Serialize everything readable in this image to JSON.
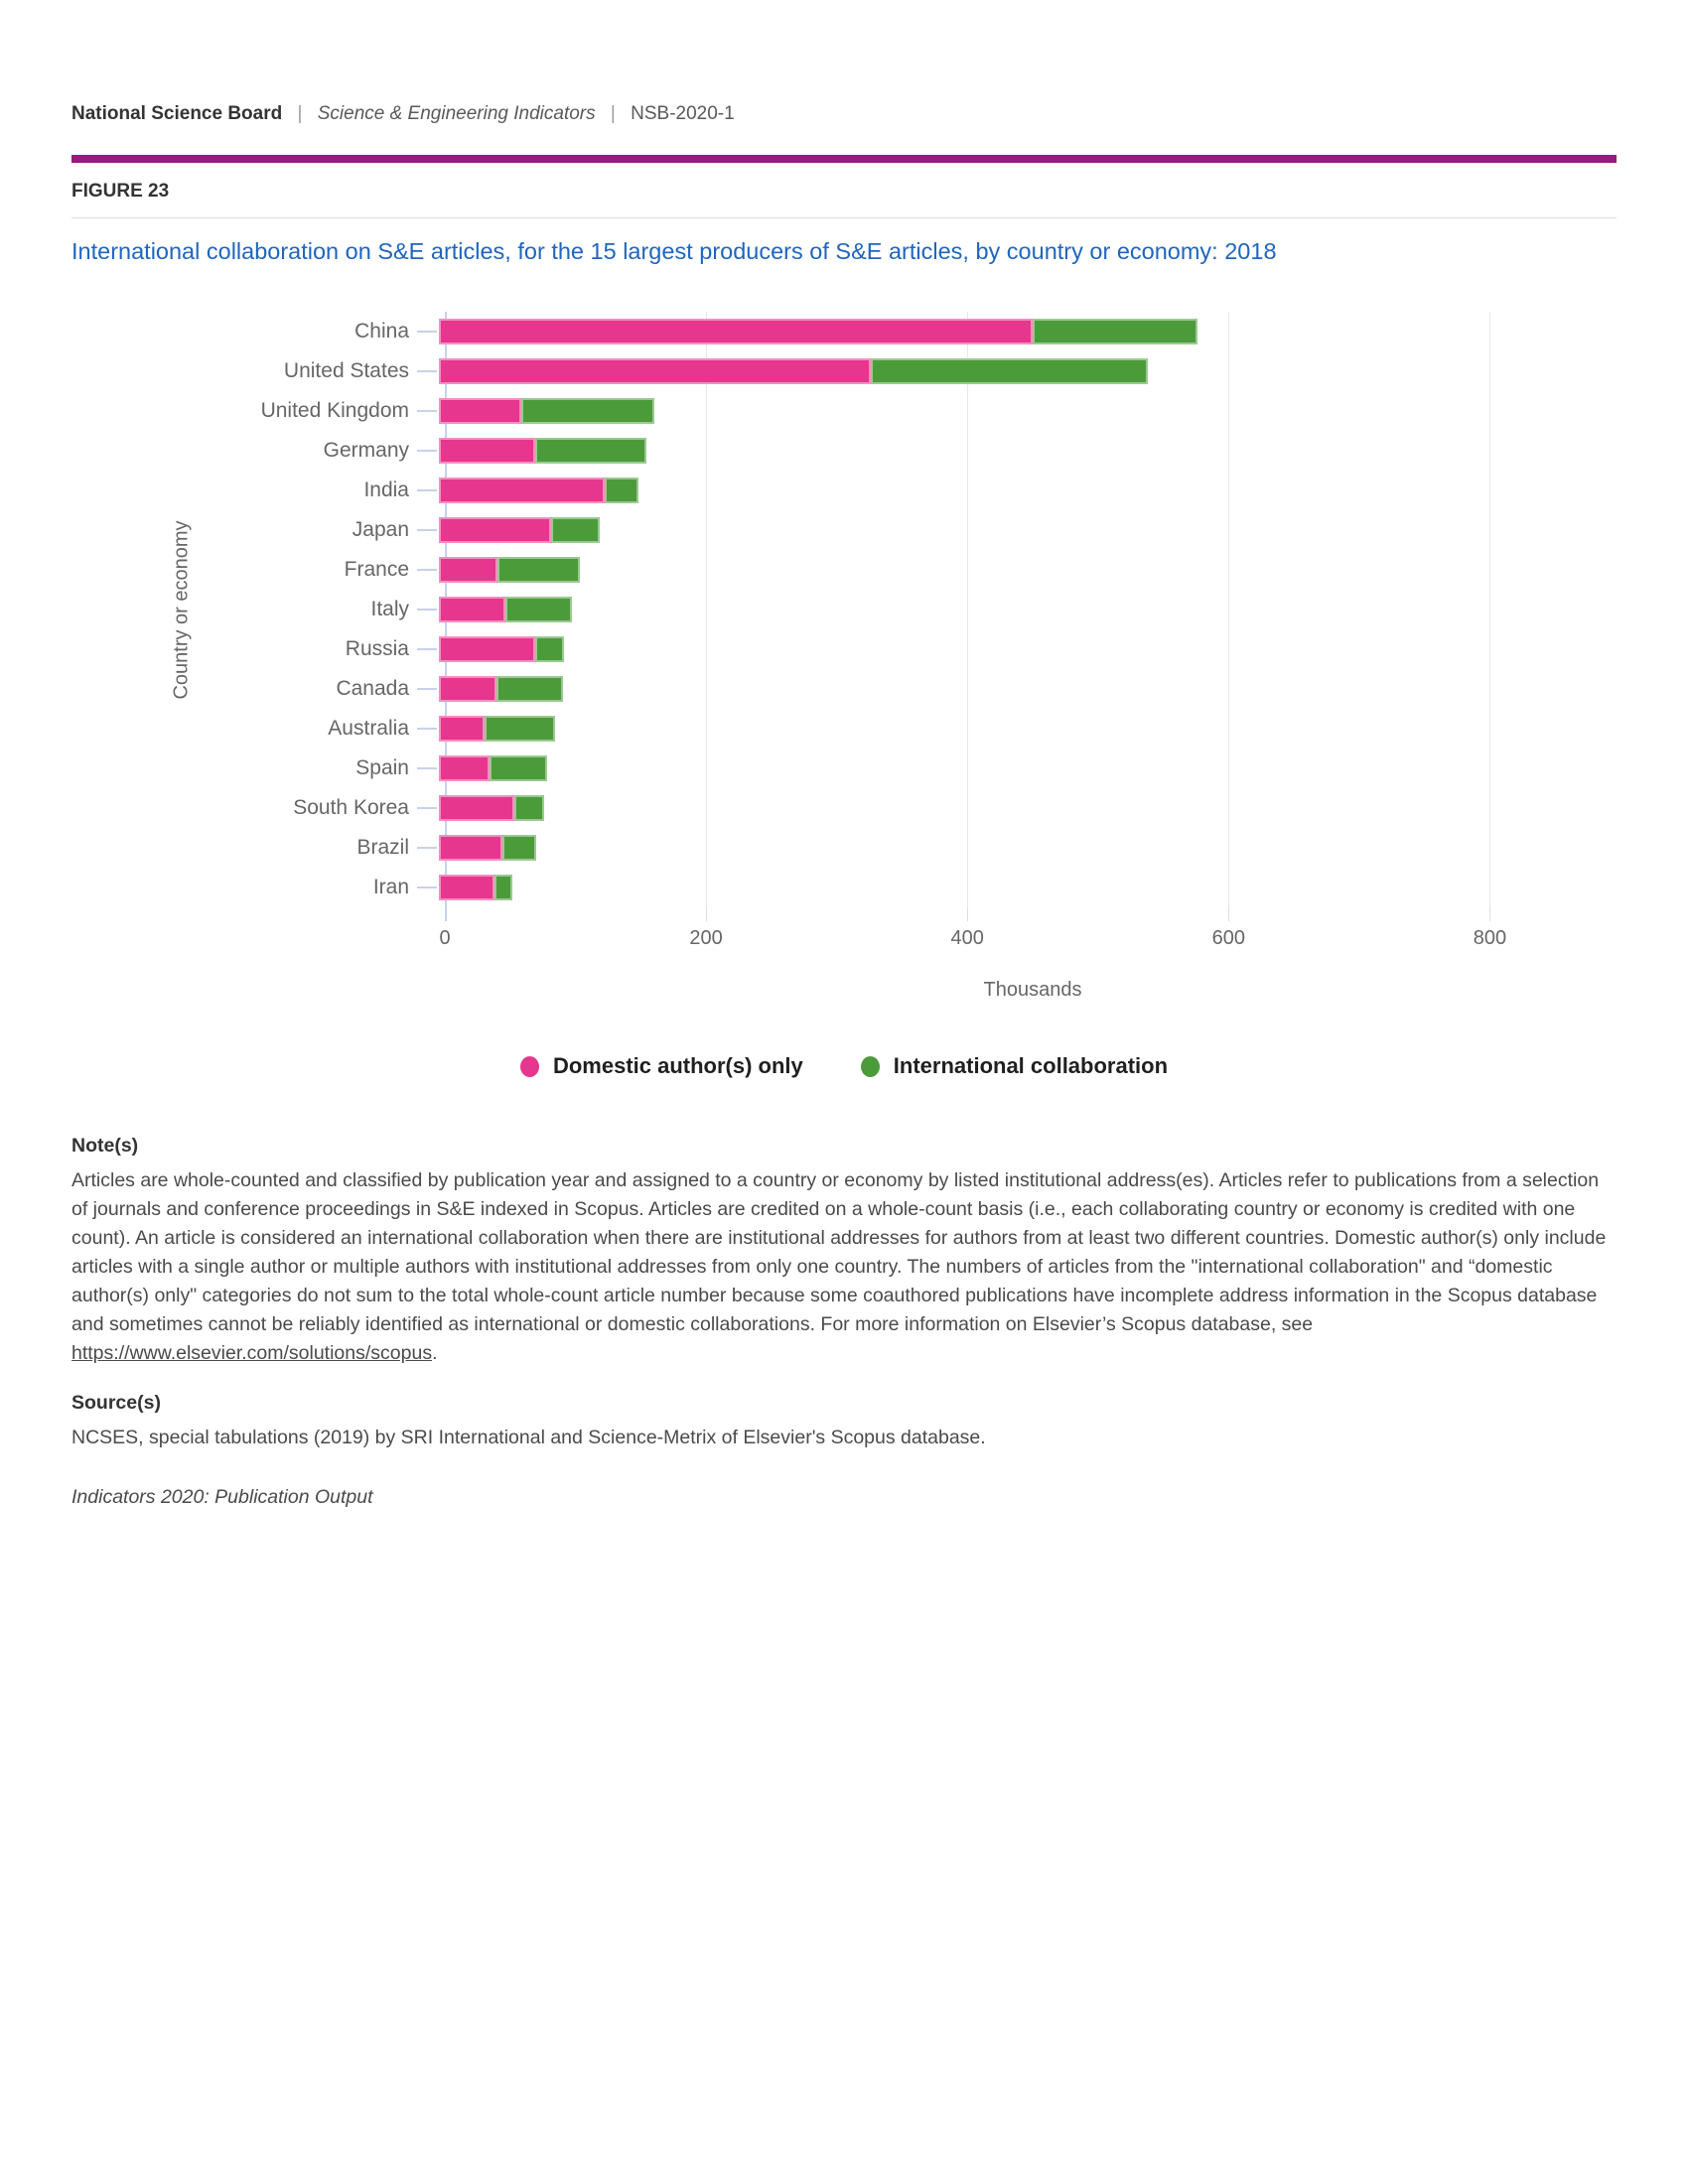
{
  "header": {
    "brand": "National Science Board",
    "separator": "|",
    "publication": "Science & Engineering Indicators",
    "report_id": "NSB-2020-1"
  },
  "figure": {
    "label": "FIGURE 23",
    "title": "International collaboration on S&E articles, for the 15 largest producers of S&E articles, by country or economy: 2018"
  },
  "chart_data": {
    "type": "bar",
    "orientation": "horizontal",
    "stacked": true,
    "grid": true,
    "legend_position": "bottom",
    "xlabel": "Thousands",
    "ylabel": "Country or economy",
    "xlim": [
      0,
      900
    ],
    "xticks": [
      0,
      200,
      400,
      600,
      800
    ],
    "units": "thousands of S&E articles",
    "categories": [
      "China",
      "United States",
      "United Kingdom",
      "Germany",
      "India",
      "Japan",
      "France",
      "Italy",
      "Russia",
      "Canada",
      "Australia",
      "Spain",
      "South Korea",
      "Brazil",
      "Iran"
    ],
    "series": [
      {
        "name": "Domestic author(s) only",
        "color": "#e7368d",
        "values": [
          455,
          331,
          63,
          74,
          127,
          86,
          45,
          51,
          74,
          44,
          35,
          39,
          58,
          49,
          43
        ]
      },
      {
        "name": "International collaboration",
        "color": "#4c9b3b",
        "values": [
          127,
          213,
          102,
          85,
          26,
          37,
          63,
          51,
          22,
          51,
          54,
          44,
          23,
          26,
          13
        ]
      }
    ]
  },
  "notes": {
    "heading": "Note(s)",
    "body_before_link": "Articles are whole-counted and classified by publication year and assigned to a country or economy by listed institutional address(es). Articles refer to publications from a selection of journals and conference proceedings in S&E indexed in Scopus. Articles are credited on a whole-count basis (i.e., each collaborating country or economy is credited with one count). An article is considered an international collaboration when there are institutional addresses for authors from at least two different countries. Domestic author(s) only include articles with a single author or multiple authors with institutional addresses from only one country. The numbers of articles from the \"international collaboration\" and “domestic author(s) only\" categories do not sum to the total whole-count article number because some coauthored publications have incomplete address information in the Scopus database and sometimes cannot be reliably identified as international or domestic collaborations. For more information on Elsevier’s Scopus database, see ",
    "link_text": "https://www.elsevier.com/solutions/scopus",
    "body_after_link": "."
  },
  "source": {
    "heading": "Source(s)",
    "text": "NCSES, special tabulations (2019) by SRI International and Science-Metrix of Elsevier's Scopus database."
  },
  "footer": {
    "text": "Indicators 2020: Publication Output"
  }
}
